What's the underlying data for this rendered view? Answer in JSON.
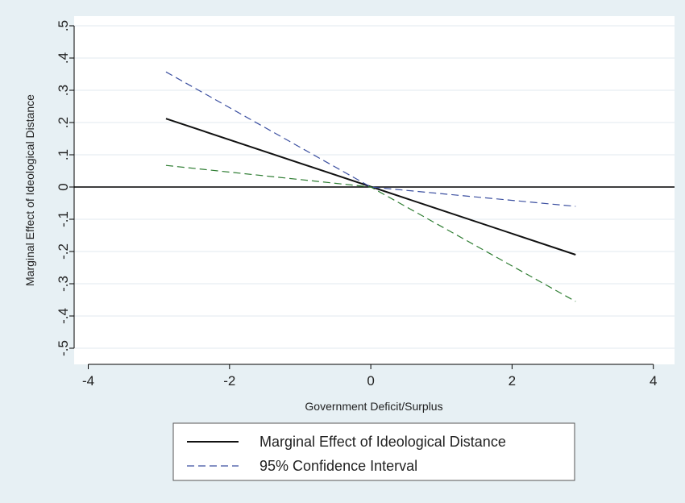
{
  "chart_data": {
    "type": "line",
    "xlabel": "Government Deficit/Surplus",
    "ylabel": "Marginal Effect of Ideological Distance",
    "xlim": [
      -4.2,
      4.3
    ],
    "ylim": [
      -0.55,
      0.53
    ],
    "x_ticks": [
      -4,
      -2,
      0,
      2,
      4
    ],
    "x_tick_labels": [
      "-4",
      "-2",
      "0",
      "2",
      "4"
    ],
    "y_ticks": [
      -0.5,
      -0.4,
      -0.3,
      -0.2,
      -0.1,
      0,
      0.1,
      0.2,
      0.3,
      0.4,
      0.5
    ],
    "y_tick_labels": [
      "-.5",
      "-.4",
      "-.3",
      "-.2",
      "-.1",
      "0",
      ".1",
      ".2",
      ".3",
      ".4",
      ".5"
    ],
    "grid": true,
    "reference_line_y": 0,
    "legend_position": "bottom",
    "series": [
      {
        "name": "Marginal Effect of Ideological Distance",
        "style": "solid",
        "color": "#111111",
        "x": [
          -2.9,
          2.9
        ],
        "y": [
          0.212,
          -0.21
        ]
      },
      {
        "name": "95% Confidence Interval",
        "style": "dashed",
        "color": "#3b4fa0",
        "x": [
          -2.9,
          0,
          2.9
        ],
        "y": [
          0.357,
          0.0,
          -0.06
        ]
      },
      {
        "name": "",
        "style": "dashed",
        "color": "#2e7d32",
        "x": [
          -2.9,
          0,
          2.9
        ],
        "y": [
          0.067,
          0.0,
          -0.355
        ]
      }
    ]
  }
}
